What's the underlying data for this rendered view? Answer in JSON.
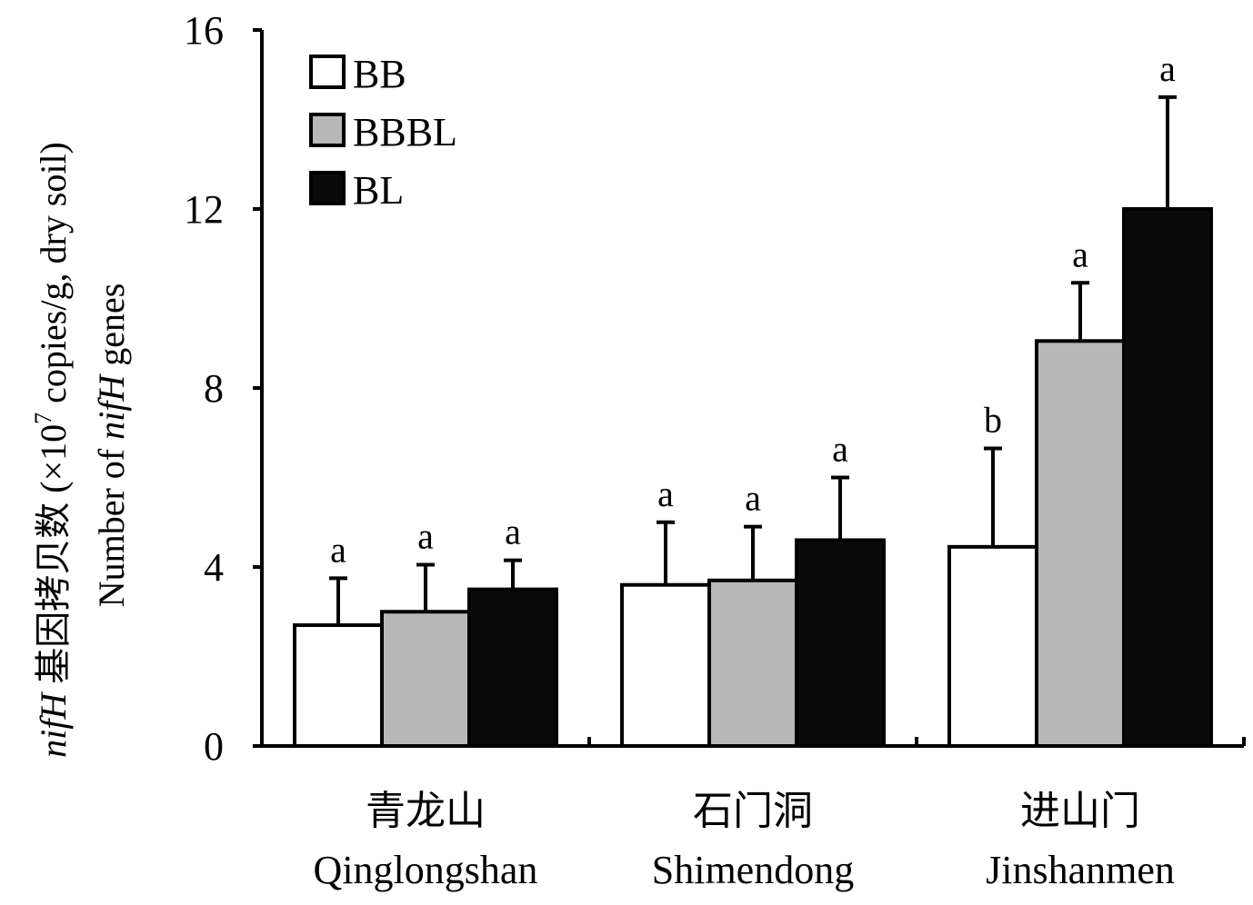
{
  "chart_data": {
    "type": "bar",
    "title": "",
    "ylim": [
      0,
      16
    ],
    "yticks": [
      0,
      4,
      8,
      12,
      16
    ],
    "ylabel_cn_italic": "nifH",
    "ylabel_cn_rest": " 基因拷贝数 (×10",
    "ylabel_cn_sup": "7",
    "ylabel_cn_end": " copies/g, dry soil)",
    "ylabel_en_start": "Number of ",
    "ylabel_en_italic": "nifH",
    "ylabel_en_end": " genes",
    "categories": [
      {
        "cn": "青龙山",
        "en": "Qinglongshan"
      },
      {
        "cn": "石门洞",
        "en": "Shimendong"
      },
      {
        "cn": "进山门",
        "en": "Jinshanmen"
      }
    ],
    "series": [
      {
        "name": "BB",
        "color": "#ffffff",
        "values": [
          2.7,
          3.6,
          4.45
        ],
        "errors": [
          1.05,
          1.4,
          2.2
        ],
        "labels": [
          "a",
          "a",
          "b"
        ]
      },
      {
        "name": "BBBL",
        "color": "#b8b8b8",
        "values": [
          3.0,
          3.7,
          9.05
        ],
        "errors": [
          1.05,
          1.2,
          1.3
        ],
        "labels": [
          "a",
          "a",
          "a"
        ]
      },
      {
        "name": "BL",
        "color": "#0a0a0a",
        "values": [
          3.5,
          4.6,
          12.0
        ],
        "errors": [
          0.65,
          1.4,
          2.5
        ],
        "labels": [
          "a",
          "a",
          "a"
        ]
      }
    ],
    "legend_position": "top-left"
  }
}
